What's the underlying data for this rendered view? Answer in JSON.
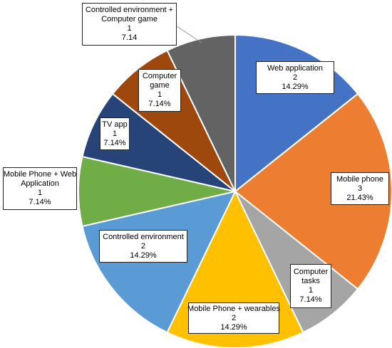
{
  "chart_data": {
    "type": "pie",
    "slices": [
      {
        "name": "Web application",
        "count": "2",
        "percent": "14.29%",
        "value": 2,
        "color": "#4472C4"
      },
      {
        "name": "Mobile phone",
        "count": "3",
        "percent": "21.43%",
        "value": 3,
        "color": "#ED7D31"
      },
      {
        "name": "Computer tasks",
        "count": "1",
        "percent": "7.14%",
        "value": 1,
        "color": "#A5A5A5"
      },
      {
        "name": "Mobile Phone + wearables",
        "count": "2",
        "percent": "14.29%",
        "value": 2,
        "color": "#FFC000"
      },
      {
        "name": "Controlled environment",
        "count": "2",
        "percent": "14.29%",
        "value": 2,
        "color": "#5B9BD5"
      },
      {
        "name": "Mobile Phone + Web Application",
        "count": "1",
        "percent": "7.14%",
        "value": 1,
        "color": "#70AD47"
      },
      {
        "name": "TV app",
        "count": "1",
        "percent": "7.14%",
        "value": 1,
        "color": "#264478"
      },
      {
        "name": "Computer game",
        "count": "1",
        "percent": "7.14%",
        "value": 1,
        "color": "#9E480E"
      },
      {
        "name": "Controlled environment + Computer game",
        "count": "1",
        "percent": "7.14",
        "value": 1,
        "color": "#636363"
      }
    ],
    "start_angle_deg": 0,
    "direction": "clockwise"
  }
}
